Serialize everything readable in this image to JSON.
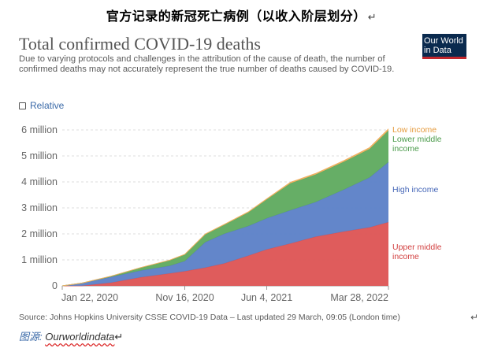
{
  "caption": {
    "text": "官方记录的新冠死亡病例（以收入阶层划分）",
    "mark": "↵"
  },
  "header": {
    "title": "Total confirmed COVID-19 deaths",
    "subtitle": "Due to varying protocols and challenges in the attribution of the cause of death, the number of confirmed deaths may not accurately represent the true number of deaths caused by COVID-19."
  },
  "logo": {
    "line1": "Our World",
    "line2": "in Data"
  },
  "controls": {
    "relative_label": "Relative"
  },
  "footer": {
    "source": "Source: Johns Hopkins University CSSE COVID-19 Data – Last updated 29 March, 09:05 (London time)",
    "return_mark": "↵",
    "credit_label": "图源:",
    "credit_site": "Ourworldindata",
    "credit_mark": "↵"
  },
  "chart_data": {
    "type": "area",
    "stacked": true,
    "title": "Total confirmed COVID-19 deaths",
    "x": [
      "2020-01-22",
      "2020-03-10",
      "2020-05-20",
      "2020-08-01",
      "2020-10-10",
      "2020-11-16",
      "2021-01-05",
      "2021-02-20",
      "2021-04-20",
      "2021-06-04",
      "2021-08-01",
      "2021-10-01",
      "2021-12-10",
      "2022-02-10",
      "2022-03-28"
    ],
    "series": [
      {
        "name": "Upper middle income",
        "color": "#dd5353",
        "values": [
          0,
          0.002,
          0.12,
          0.33,
          0.48,
          0.56,
          0.7,
          0.86,
          1.16,
          1.4,
          1.63,
          1.89,
          2.09,
          2.25,
          2.45
        ]
      },
      {
        "name": "High income",
        "color": "#5b7fc7",
        "values": [
          0,
          0.1,
          0.22,
          0.26,
          0.29,
          0.39,
          0.98,
          1.14,
          1.14,
          1.2,
          1.28,
          1.33,
          1.62,
          1.92,
          2.31
        ]
      },
      {
        "name": "Lower middle income",
        "color": "#5eaa5e",
        "values": [
          0,
          0.005,
          0.03,
          0.11,
          0.21,
          0.25,
          0.3,
          0.34,
          0.52,
          0.72,
          1.04,
          1.06,
          1.07,
          1.1,
          1.22
        ]
      },
      {
        "name": "Low income",
        "color": "#f0b060",
        "values": [
          0,
          0.0005,
          0.003,
          0.007,
          0.01,
          0.012,
          0.015,
          0.02,
          0.025,
          0.028,
          0.035,
          0.04,
          0.045,
          0.05,
          0.06
        ]
      }
    ],
    "ylim": [
      0,
      6000000
    ],
    "y_unit": 1000000,
    "y_ticks": [
      0,
      1000000,
      2000000,
      3000000,
      4000000,
      5000000,
      6000000
    ],
    "y_tick_labels": [
      "0",
      "1 million",
      "2 million",
      "3 million",
      "4 million",
      "5 million",
      "6 million"
    ],
    "x_ticks": [
      "2020-01-22",
      "2020-11-16",
      "2021-06-04",
      "2022-03-28"
    ],
    "x_tick_labels": [
      "Jan 22, 2020",
      "Nov 16, 2020",
      "Jun 4, 2021",
      "Mar 28, 2022"
    ],
    "grid": true,
    "legend": "right",
    "legend_labels": [
      {
        "series": "Low income",
        "lines": [
          "Low income"
        ],
        "color": "#e59a3c"
      },
      {
        "series": "Lower middle income",
        "lines": [
          "Lower middle",
          "income"
        ],
        "color": "#4a9a4a"
      },
      {
        "series": "High income",
        "lines": [
          "High income"
        ],
        "color": "#4667b8"
      },
      {
        "series": "Upper middle income",
        "lines": [
          "Upper middle",
          "income"
        ],
        "color": "#d24040"
      }
    ]
  }
}
